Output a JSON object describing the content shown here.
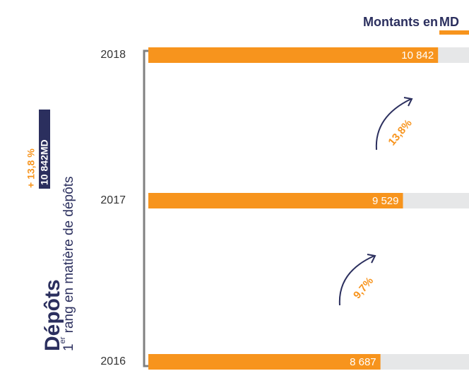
{
  "chart_data": {
    "type": "bar",
    "orientation": "horizontal",
    "title": "Dépôts",
    "subtitle": {
      "rank": "1",
      "suffix": "er",
      "text": " rang en matière de dépôts"
    },
    "highlight": "10 842MD",
    "growth": "+ 13,8 %",
    "unit_label": {
      "text": "Montants en ",
      "unit": "MD"
    },
    "categories": [
      "2018",
      "2017",
      "2016"
    ],
    "values": [
      10842,
      9529,
      8687
    ],
    "value_labels": [
      "10 842",
      "9 529",
      "8 687"
    ],
    "annotations": [
      "13,8%",
      "9,7%"
    ],
    "color": "#f7941d",
    "track_color": "#e6e7e8",
    "xlim": [
      0,
      12000
    ]
  }
}
